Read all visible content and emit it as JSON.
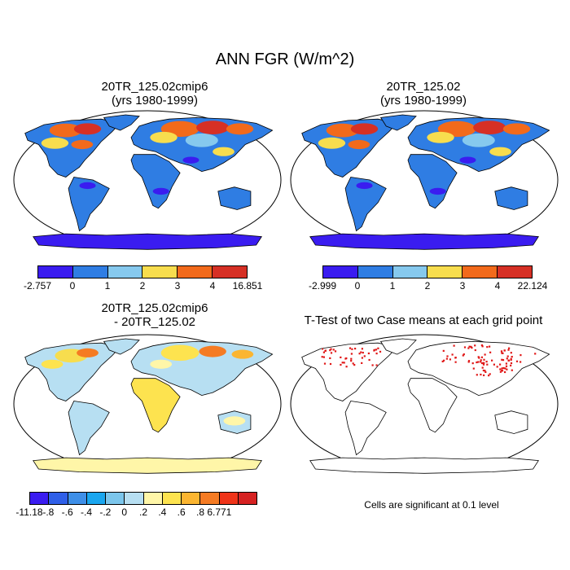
{
  "main_title": "ANN FGR (W/m^2)",
  "panels": [
    {
      "id": "p1",
      "title": "20TR_125.02cmip6\n(yrs 1980-1999)"
    },
    {
      "id": "p2",
      "title": "20TR_125.02\n(yrs 1980-1999)"
    },
    {
      "id": "p3",
      "title": "20TR_125.02cmip6\n- 20TR_125.02"
    },
    {
      "id": "p4",
      "title": "T-Test of two Case means at each grid point"
    }
  ],
  "colorbars": {
    "cb1": {
      "colors": [
        "#3a1cf0",
        "#2f7de3",
        "#86c9ee",
        "#f7dd4e",
        "#f26a1b",
        "#d63025"
      ],
      "labels": [
        "-2.757",
        "0",
        "1",
        "2",
        "3",
        "4",
        "16.851"
      ]
    },
    "cb2": {
      "colors": [
        "#3a1cf0",
        "#2f7de3",
        "#86c9ee",
        "#f7dd4e",
        "#f26a1b",
        "#d63025"
      ],
      "labels": [
        "-2.999",
        "0",
        "1",
        "2",
        "3",
        "4",
        "22.124"
      ]
    },
    "cb3": {
      "colors": [
        "#3a1cf0",
        "#2f5fe8",
        "#3e8fe8",
        "#1aa6ef",
        "#7cc6ec",
        "#b7dff2",
        "#fff6a8",
        "#fde34f",
        "#fbb531",
        "#f57b23",
        "#ef3419",
        "#d62222"
      ],
      "labels": [
        "-11.18",
        "-.8",
        "-.6",
        "-.4",
        "-.2",
        "0",
        ".2",
        ".4",
        ".6",
        ".8",
        "6.771"
      ]
    }
  },
  "note": "Cells are significant at 0.1 level"
}
